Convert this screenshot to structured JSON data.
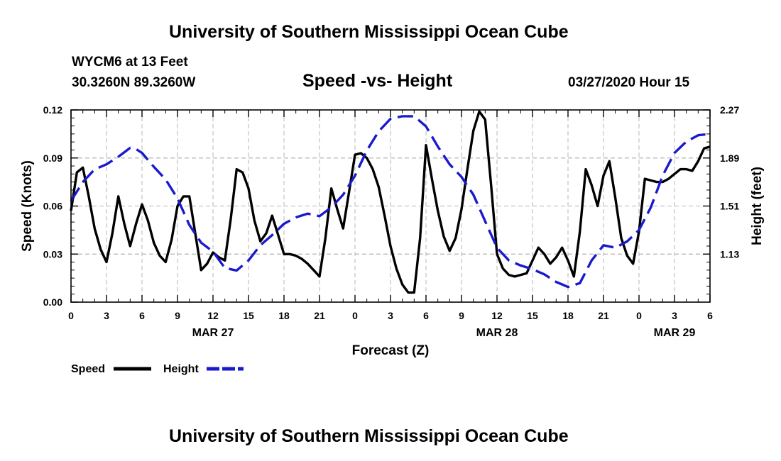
{
  "header": {
    "title": "University of Southern Mississippi Ocean Cube",
    "station": "WYCM6 at 13 Feet",
    "coords": "30.3260N 89.3260W",
    "datetime": "03/27/2020 Hour 15"
  },
  "footer": {
    "title": "University of Southern Mississippi Ocean Cube"
  },
  "colors": {
    "speed": "#000000",
    "height": "#1a1acc",
    "grid": "#b4b4b4"
  },
  "chart_data": {
    "type": "line",
    "title": "Speed -vs- Height",
    "xlabel": "Forecast (Z)",
    "ylabel": "Speed (Knots)",
    "y2label": "Height (feet)",
    "xlim": [
      0,
      54
    ],
    "ylim": [
      0,
      0.12
    ],
    "y2lim": [
      0.75,
      2.27
    ],
    "xticks": [
      0,
      3,
      6,
      9,
      12,
      15,
      18,
      21,
      24,
      27,
      30,
      33,
      36,
      39,
      42,
      45,
      48,
      51,
      54
    ],
    "xtick_labels": [
      "0",
      "3",
      "6",
      "9",
      "12",
      "15",
      "18",
      "21",
      "0",
      "3",
      "6",
      "9",
      "12",
      "15",
      "18",
      "21",
      "0",
      "3",
      "6"
    ],
    "yticks": [
      0,
      0.03,
      0.06,
      0.09,
      0.12
    ],
    "ytick_labels": [
      "0.00",
      "0.03",
      "0.06",
      "0.09",
      "0.12"
    ],
    "y2ticks": [
      1.13,
      1.51,
      1.89,
      2.27
    ],
    "y2tick_labels": [
      "1.13",
      "1.51",
      "1.89",
      "2.27"
    ],
    "date_labels": [
      {
        "x": 12,
        "text": "MAR 27"
      },
      {
        "x": 36,
        "text": "MAR 28"
      },
      {
        "x": 51,
        "text": "MAR 29"
      }
    ],
    "legend": [
      {
        "name": "Speed",
        "style": "solid"
      },
      {
        "name": "Height",
        "style": "dashed"
      }
    ],
    "series": [
      {
        "name": "Speed",
        "axis": "left",
        "x": [
          0,
          0.5,
          1,
          1.5,
          2,
          2.5,
          3,
          3.5,
          4,
          4.5,
          5,
          5.5,
          6,
          6.5,
          7,
          7.5,
          8,
          8.5,
          9,
          9.5,
          10,
          10.5,
          11,
          11.5,
          12,
          12.5,
          13,
          13.5,
          14,
          14.5,
          15,
          15.5,
          16,
          16.5,
          17,
          17.5,
          18,
          18.5,
          19,
          19.5,
          20,
          20.5,
          21,
          21.5,
          22,
          22.5,
          23,
          23.5,
          24,
          24.5,
          25,
          25.5,
          26,
          26.5,
          27,
          27.5,
          28,
          28.5,
          29,
          29.5,
          30,
          30.5,
          31,
          31.5,
          32,
          32.5,
          33,
          33.5,
          34,
          34.5,
          35,
          35.5,
          36,
          36.5,
          37,
          37.5,
          38,
          38.5,
          39,
          39.5,
          40,
          40.5,
          41,
          41.5,
          42,
          42.5,
          43,
          43.5,
          44,
          44.5,
          45,
          45.5,
          46,
          46.5,
          47,
          47.5,
          48,
          48.5,
          49,
          49.5,
          50,
          50.5,
          51,
          51.5,
          52,
          52.5,
          53,
          53.5,
          54
        ],
        "values": [
          0.057,
          0.081,
          0.084,
          0.066,
          0.046,
          0.033,
          0.025,
          0.043,
          0.066,
          0.049,
          0.035,
          0.049,
          0.061,
          0.051,
          0.037,
          0.029,
          0.025,
          0.039,
          0.06,
          0.066,
          0.066,
          0.043,
          0.02,
          0.024,
          0.031,
          0.028,
          0.026,
          0.052,
          0.083,
          0.081,
          0.071,
          0.051,
          0.038,
          0.043,
          0.054,
          0.042,
          0.03,
          0.03,
          0.029,
          0.027,
          0.024,
          0.02,
          0.016,
          0.04,
          0.071,
          0.058,
          0.046,
          0.069,
          0.092,
          0.093,
          0.09,
          0.083,
          0.072,
          0.054,
          0.035,
          0.021,
          0.011,
          0.006,
          0.006,
          0.04,
          0.098,
          0.077,
          0.057,
          0.041,
          0.032,
          0.04,
          0.058,
          0.083,
          0.107,
          0.119,
          0.114,
          0.073,
          0.03,
          0.021,
          0.017,
          0.016,
          0.017,
          0.018,
          0.026,
          0.034,
          0.03,
          0.024,
          0.028,
          0.034,
          0.026,
          0.016,
          0.044,
          0.083,
          0.073,
          0.06,
          0.079,
          0.088,
          0.065,
          0.04,
          0.029,
          0.024,
          0.044,
          0.077,
          0.076,
          0.075,
          0.075,
          0.077,
          0.08,
          0.083,
          0.083,
          0.082,
          0.088,
          0.096,
          0.097
        ]
      },
      {
        "name": "Height",
        "axis": "right",
        "x": [
          0,
          1,
          2,
          3,
          4,
          5,
          5.5,
          6,
          7,
          8,
          9,
          10,
          11,
          12,
          13,
          14,
          15,
          16,
          17,
          18,
          19,
          20,
          21,
          22,
          23,
          24,
          25,
          26,
          27,
          28,
          29,
          30,
          31,
          32,
          33,
          34,
          35,
          36,
          37,
          38,
          39,
          40,
          41,
          42,
          43,
          44,
          45,
          46,
          47,
          48,
          49,
          50,
          51,
          52,
          53,
          54
        ],
        "values": [
          1.55,
          1.7,
          1.8,
          1.84,
          1.9,
          1.97,
          1.96,
          1.93,
          1.82,
          1.72,
          1.57,
          1.36,
          1.22,
          1.15,
          1.02,
          1.0,
          1.08,
          1.2,
          1.28,
          1.37,
          1.42,
          1.45,
          1.43,
          1.5,
          1.6,
          1.75,
          1.95,
          2.1,
          2.2,
          2.22,
          2.22,
          2.14,
          1.98,
          1.84,
          1.74,
          1.6,
          1.39,
          1.18,
          1.08,
          1.04,
          1.01,
          0.97,
          0.91,
          0.87,
          0.9,
          1.08,
          1.2,
          1.18,
          1.23,
          1.32,
          1.5,
          1.75,
          1.93,
          2.02,
          2.07,
          2.08
        ]
      }
    ]
  }
}
